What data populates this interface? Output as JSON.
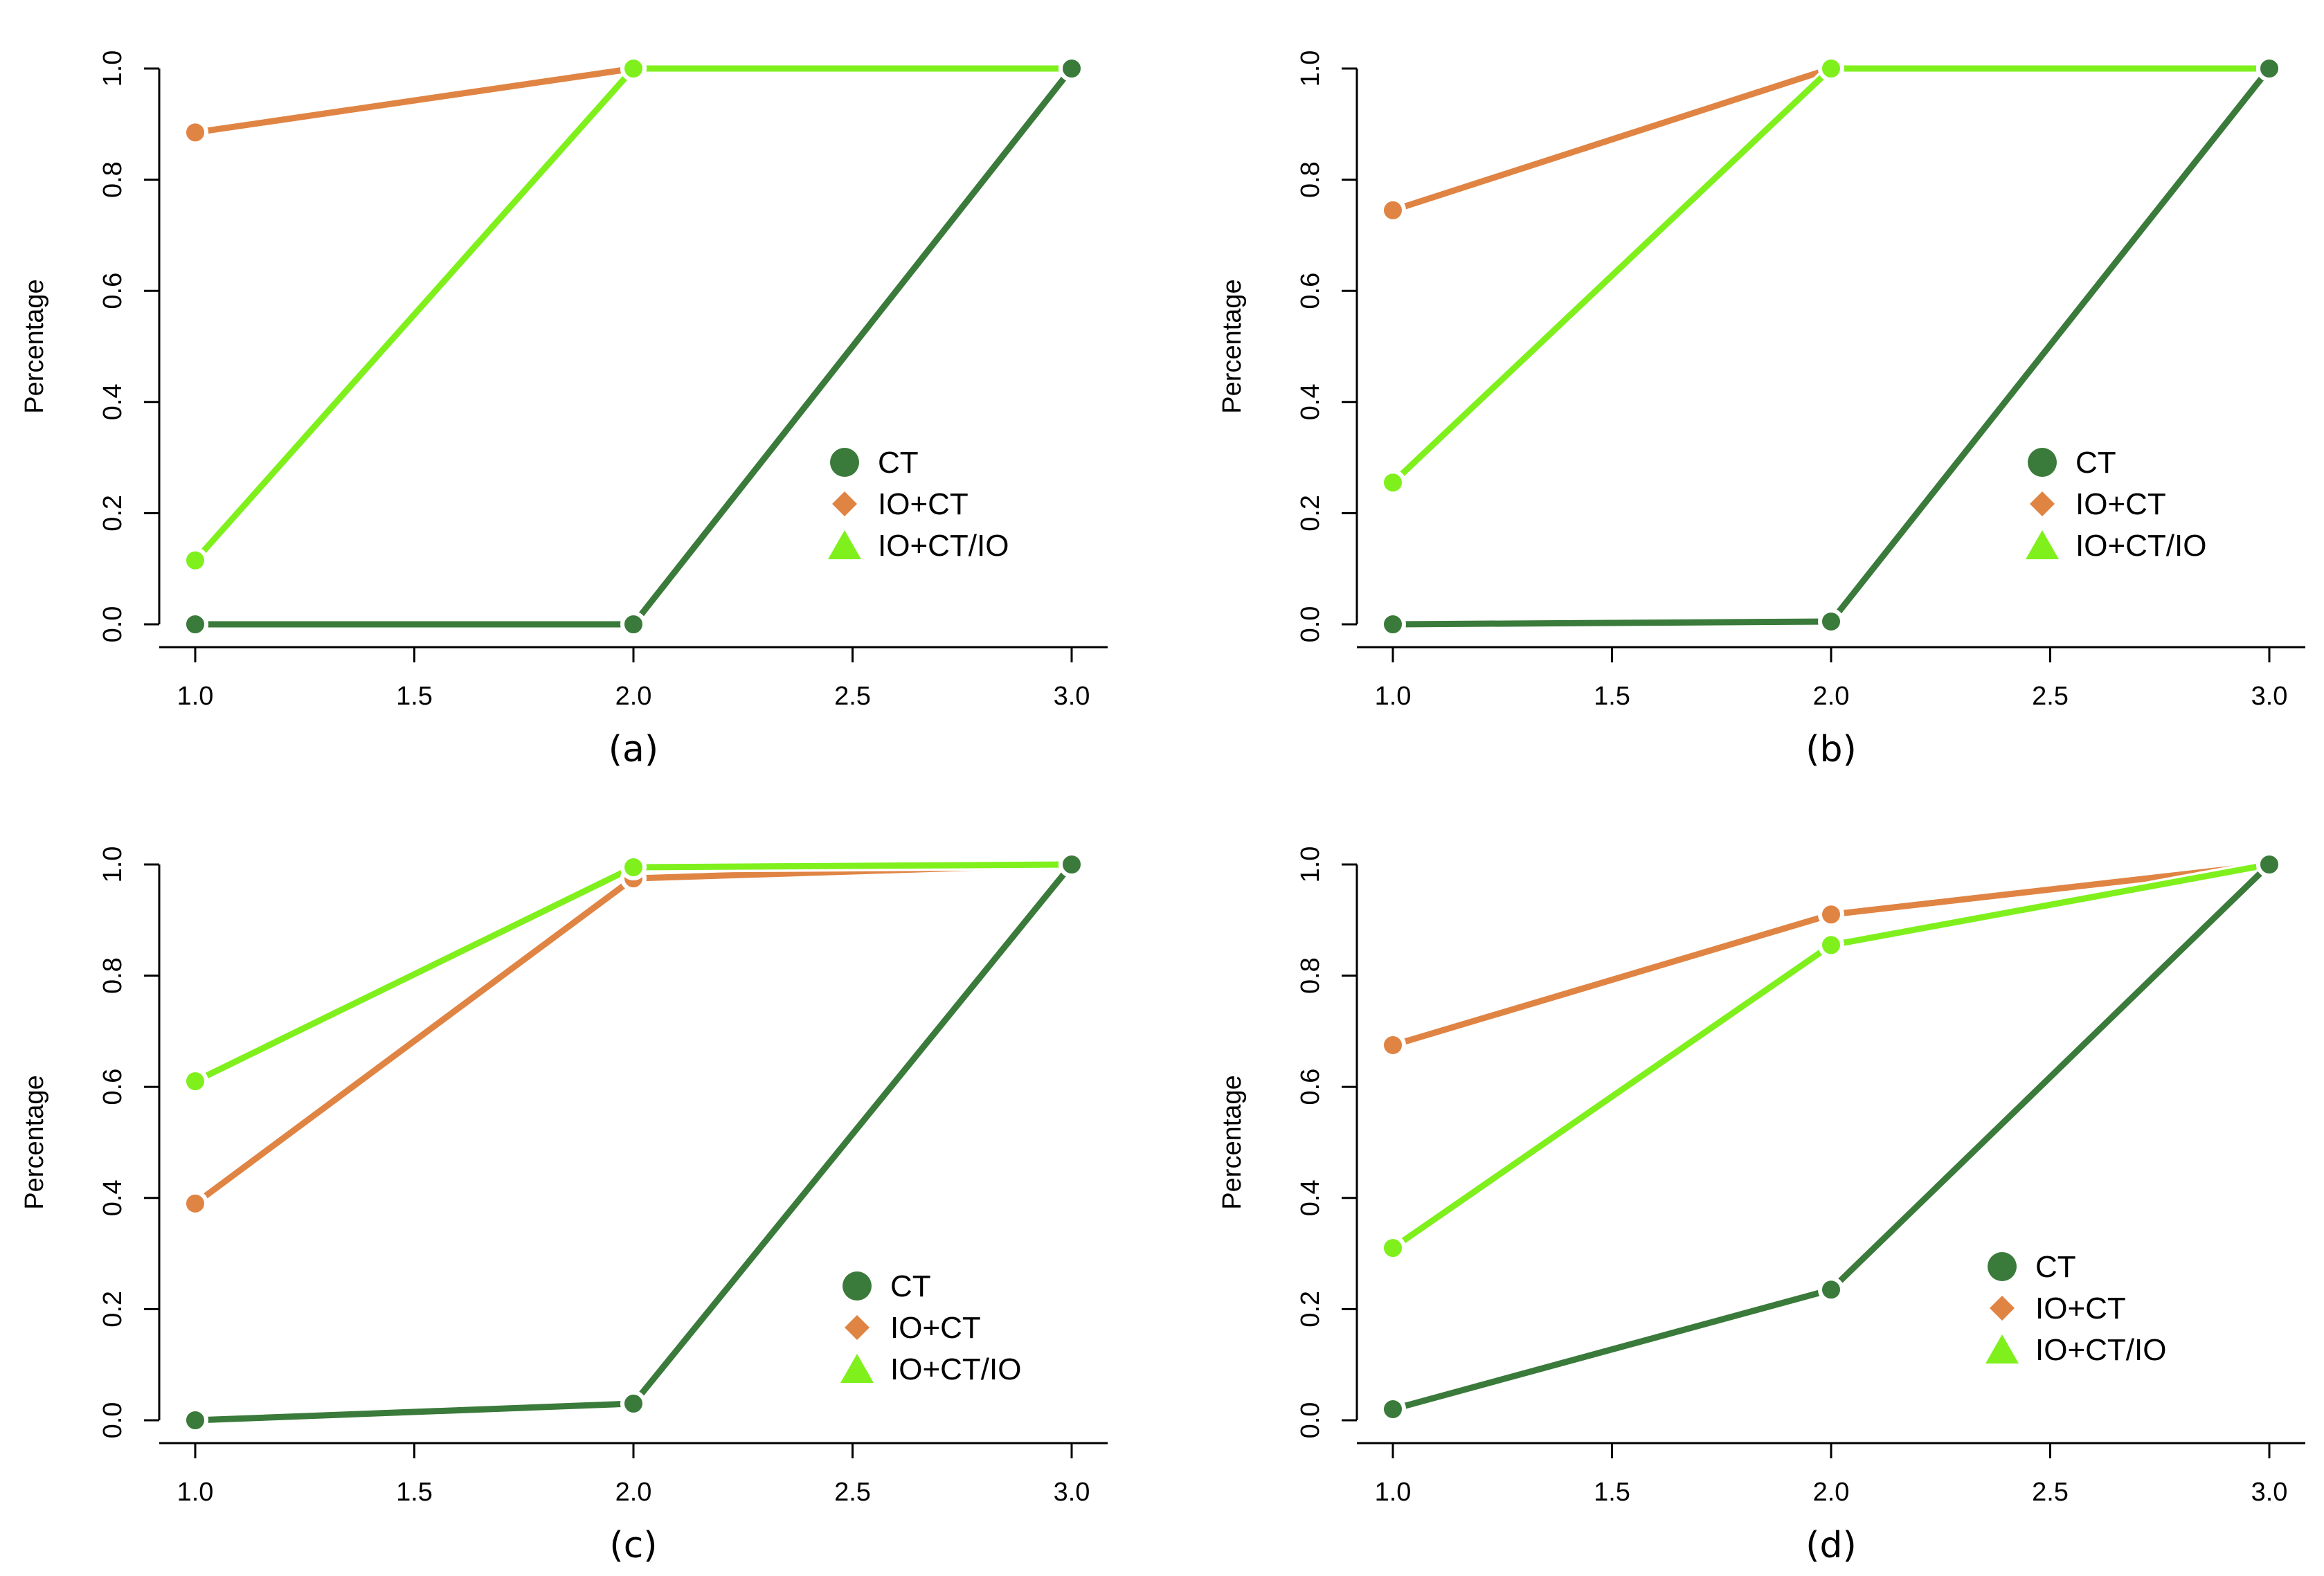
{
  "figure": {
    "colors": {
      "CT": "#3a7a3a",
      "IO+CT": "#e08444",
      "IO+CT/IO": "#7ff01c",
      "axis": "#000000"
    }
  },
  "chart_data": [
    {
      "type": "line",
      "caption": "(a)",
      "ylabel": "Percentage",
      "xlim": [
        1.0,
        3.0
      ],
      "ylim": [
        0.0,
        1.0
      ],
      "xticks": [
        "1.0",
        "1.5",
        "2.0",
        "2.5",
        "3.0"
      ],
      "yticks": [
        "0.0",
        "0.2",
        "0.4",
        "0.6",
        "0.8",
        "1.0"
      ],
      "grid": false,
      "legend_position": "center-right",
      "x": [
        1.0,
        2.0,
        3.0
      ],
      "series": [
        {
          "name": "CT",
          "marker": "circle",
          "values": [
            0.0,
            0.0,
            1.0
          ]
        },
        {
          "name": "IO+CT",
          "marker": "diamond",
          "values": [
            0.885,
            1.0,
            1.0
          ]
        },
        {
          "name": "IO+CT/IO",
          "marker": "triangle",
          "values": [
            0.115,
            1.0,
            1.0
          ]
        }
      ]
    },
    {
      "type": "line",
      "caption": "(b)",
      "ylabel": "Percentage",
      "xlim": [
        1.0,
        3.0
      ],
      "ylim": [
        0.0,
        1.0
      ],
      "xticks": [
        "1.0",
        "1.5",
        "2.0",
        "2.5",
        "3.0"
      ],
      "yticks": [
        "0.0",
        "0.2",
        "0.4",
        "0.6",
        "0.8",
        "1.0"
      ],
      "grid": false,
      "legend_position": "center-right",
      "x": [
        1.0,
        2.0,
        3.0
      ],
      "series": [
        {
          "name": "CT",
          "marker": "circle",
          "values": [
            0.0,
            0.005,
            1.0
          ]
        },
        {
          "name": "IO+CT",
          "marker": "diamond",
          "values": [
            0.745,
            1.0,
            1.0
          ]
        },
        {
          "name": "IO+CT/IO",
          "marker": "triangle",
          "values": [
            0.255,
            1.0,
            1.0
          ]
        }
      ]
    },
    {
      "type": "line",
      "caption": "(c)",
      "ylabel": "Percentage",
      "xlim": [
        1.0,
        3.0
      ],
      "ylim": [
        0.0,
        1.0
      ],
      "xticks": [
        "1.0",
        "1.5",
        "2.0",
        "2.5",
        "3.0"
      ],
      "yticks": [
        "0.0",
        "0.2",
        "0.4",
        "0.6",
        "0.8",
        "1.0"
      ],
      "grid": false,
      "legend_position": "bottom-right",
      "x": [
        1.0,
        2.0,
        3.0
      ],
      "series": [
        {
          "name": "CT",
          "marker": "circle",
          "values": [
            0.0,
            0.03,
            1.0
          ]
        },
        {
          "name": "IO+CT",
          "marker": "diamond",
          "values": [
            0.39,
            0.975,
            1.0
          ]
        },
        {
          "name": "IO+CT/IO",
          "marker": "triangle",
          "values": [
            0.61,
            0.995,
            1.0
          ]
        }
      ]
    },
    {
      "type": "line",
      "caption": "(d)",
      "ylabel": "Percentage",
      "xlim": [
        1.0,
        3.0
      ],
      "ylim": [
        0.0,
        1.0
      ],
      "xticks": [
        "1.0",
        "1.5",
        "2.0",
        "2.5",
        "3.0"
      ],
      "yticks": [
        "0.0",
        "0.2",
        "0.4",
        "0.6",
        "0.8",
        "1.0"
      ],
      "grid": false,
      "legend_position": "center-right",
      "x": [
        1.0,
        2.0,
        3.0
      ],
      "series": [
        {
          "name": "CT",
          "marker": "circle",
          "values": [
            0.02,
            0.235,
            1.0
          ]
        },
        {
          "name": "IO+CT",
          "marker": "diamond",
          "values": [
            0.675,
            0.91,
            1.0
          ]
        },
        {
          "name": "IO+CT/IO",
          "marker": "triangle",
          "values": [
            0.31,
            0.855,
            1.0
          ]
        }
      ]
    }
  ]
}
